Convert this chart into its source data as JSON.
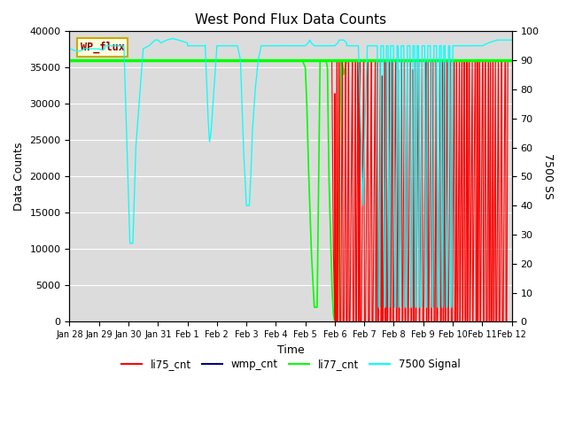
{
  "title": "West Pond Flux Data Counts",
  "ylabel_left": "Data Counts",
  "ylabel_right": "7500 SS",
  "xlabel": "Time",
  "ylim_left": [
    0,
    40000
  ],
  "ylim_right": [
    0,
    100
  ],
  "bg_color": "#dcdcdc",
  "wp_flux_label": "WP_flux",
  "wp_flux_level": 36000,
  "x_tick_labels": [
    "Jan 28",
    "Jan 29",
    "Jan 30",
    "Jan 31",
    "Feb 1",
    "Feb 2",
    "Feb 3",
    "Feb 4",
    "Feb 5",
    "Feb 6",
    "Feb 7",
    "Feb 8",
    "Feb 9",
    "Feb 10",
    "Feb 11",
    "Feb 12"
  ],
  "yticks_left": [
    0,
    5000,
    10000,
    15000,
    20000,
    25000,
    30000,
    35000,
    40000
  ],
  "yticks_right": [
    0,
    10,
    20,
    30,
    40,
    50,
    60,
    70,
    80,
    90,
    100
  ]
}
